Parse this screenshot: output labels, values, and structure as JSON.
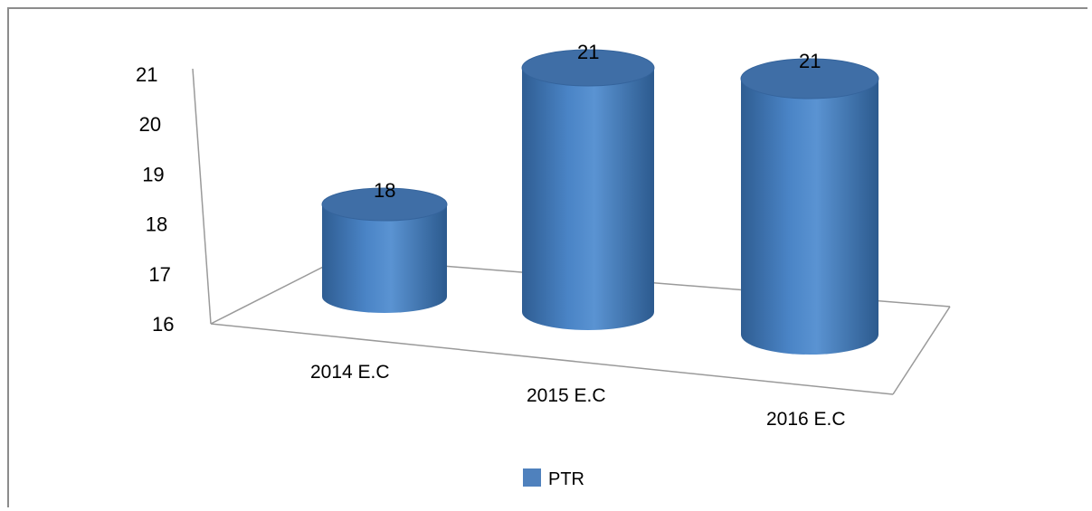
{
  "chart_data": {
    "type": "bar",
    "style": "3d-cylinder",
    "categories": [
      "2014 E.C",
      "2015 E.C",
      "2016 E.C"
    ],
    "series": [
      {
        "name": "PTR",
        "values": [
          18,
          21,
          21
        ],
        "color": "#4f81bd"
      }
    ],
    "y_ticks": [
      "16",
      "17",
      "18",
      "19",
      "20",
      "21"
    ],
    "ylim": [
      16,
      21
    ],
    "data_labels": [
      "18",
      "21",
      "21"
    ],
    "legend_position": "bottom",
    "grid": false
  }
}
